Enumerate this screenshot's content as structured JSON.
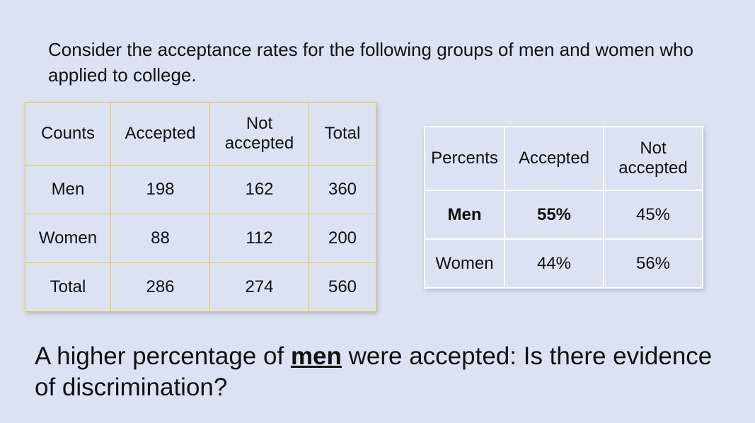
{
  "intro": "Consider the acceptance rates for the following groups of men and women who applied to college.",
  "counts_table": {
    "headers": [
      "Counts",
      "Accepted",
      "Not accepted",
      "Total"
    ],
    "rows": [
      [
        "Men",
        "198",
        "162",
        "360"
      ],
      [
        "Women",
        "88",
        "112",
        "200"
      ],
      [
        "Total",
        "286",
        "274",
        "560"
      ]
    ],
    "border_color": "#e8c84a"
  },
  "percents_table": {
    "headers": [
      "Percents",
      "Accepted",
      "Not accepted"
    ],
    "rows": [
      [
        "Men",
        "55%",
        "45%"
      ],
      [
        "Women",
        "44%",
        "56%"
      ]
    ],
    "border_color": "#ffffff"
  },
  "question": {
    "before": "A higher percentage of ",
    "emphasis": "men",
    "after": " were accepted: Is there evidence of discrimination?"
  },
  "background_color": "#dbe3f3"
}
